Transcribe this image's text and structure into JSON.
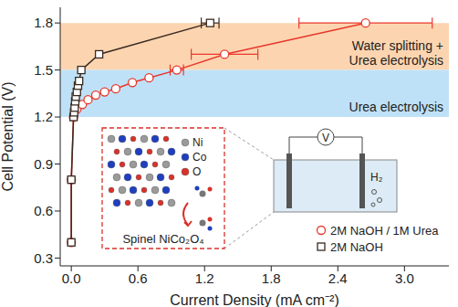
{
  "chart_data": {
    "type": "scatter",
    "x_label": "Current Density (mA cm⁻²)",
    "y_label": "Cell Potential (V)",
    "xlim": [
      -0.1,
      3.4
    ],
    "ylim": [
      0.25,
      1.9
    ],
    "xticks": [
      {
        "value": 0,
        "label": "0.0"
      },
      0.6,
      1.2,
      1.8,
      2.4,
      {
        "value": 3,
        "label": "3.0"
      }
    ],
    "yticks": [
      0.3,
      0.6,
      0.9,
      1.2,
      1.5,
      1.8
    ],
    "legend": "bottom right",
    "series": [
      {
        "name": "2M NaOH / 1M Urea",
        "color": "#e8372c",
        "marker": "circle",
        "line_style": "solid",
        "x": [
          0,
          0,
          0.02,
          0.05,
          0.1,
          0.15,
          0.22,
          0.3,
          0.4,
          0.55,
          0.7,
          0.95,
          1.38,
          2.65
        ],
        "values": [
          0.4,
          0.8,
          1.2,
          1.25,
          1.28,
          1.31,
          1.34,
          1.36,
          1.38,
          1.42,
          1.45,
          1.5,
          1.6,
          1.8
        ],
        "x_error": [
          null,
          null,
          null,
          null,
          null,
          null,
          null,
          null,
          null,
          null,
          null,
          0.06,
          0.3,
          0.6
        ]
      },
      {
        "name": "2M NaOH",
        "color": "#3a2a20",
        "marker": "square",
        "line_style": "solid",
        "x": [
          0,
          0,
          0.02,
          0.025,
          0.03,
          0.035,
          0.04,
          0.05,
          0.06,
          0.07,
          0.09,
          0.25,
          1.25
        ],
        "values": [
          0.4,
          0.8,
          1.2,
          1.23,
          1.26,
          1.3,
          1.33,
          1.36,
          1.4,
          1.43,
          1.5,
          1.6,
          1.8
        ],
        "x_error": [
          null,
          null,
          null,
          null,
          null,
          null,
          null,
          null,
          null,
          null,
          null,
          null,
          0.08
        ]
      }
    ],
    "bands": [
      {
        "y": [
          1.5,
          1.8
        ],
        "label": "Water splitting + Urea electrolysis",
        "color": "#fcd5b0"
      },
      {
        "y": [
          1.2,
          1.5
        ],
        "label": "Urea electrolysis",
        "color": "#bfe1f7"
      }
    ],
    "inset": {
      "title": "Spinel NiCo₂O₄",
      "atoms": [
        {
          "label": "Ni",
          "color": "#9a9a9a"
        },
        {
          "label": "Co",
          "color": "#1f3fbf"
        },
        {
          "label": "O",
          "color": "#d8322a"
        }
      ],
      "cell": {
        "meter": "V",
        "gas": "H₂"
      }
    }
  }
}
